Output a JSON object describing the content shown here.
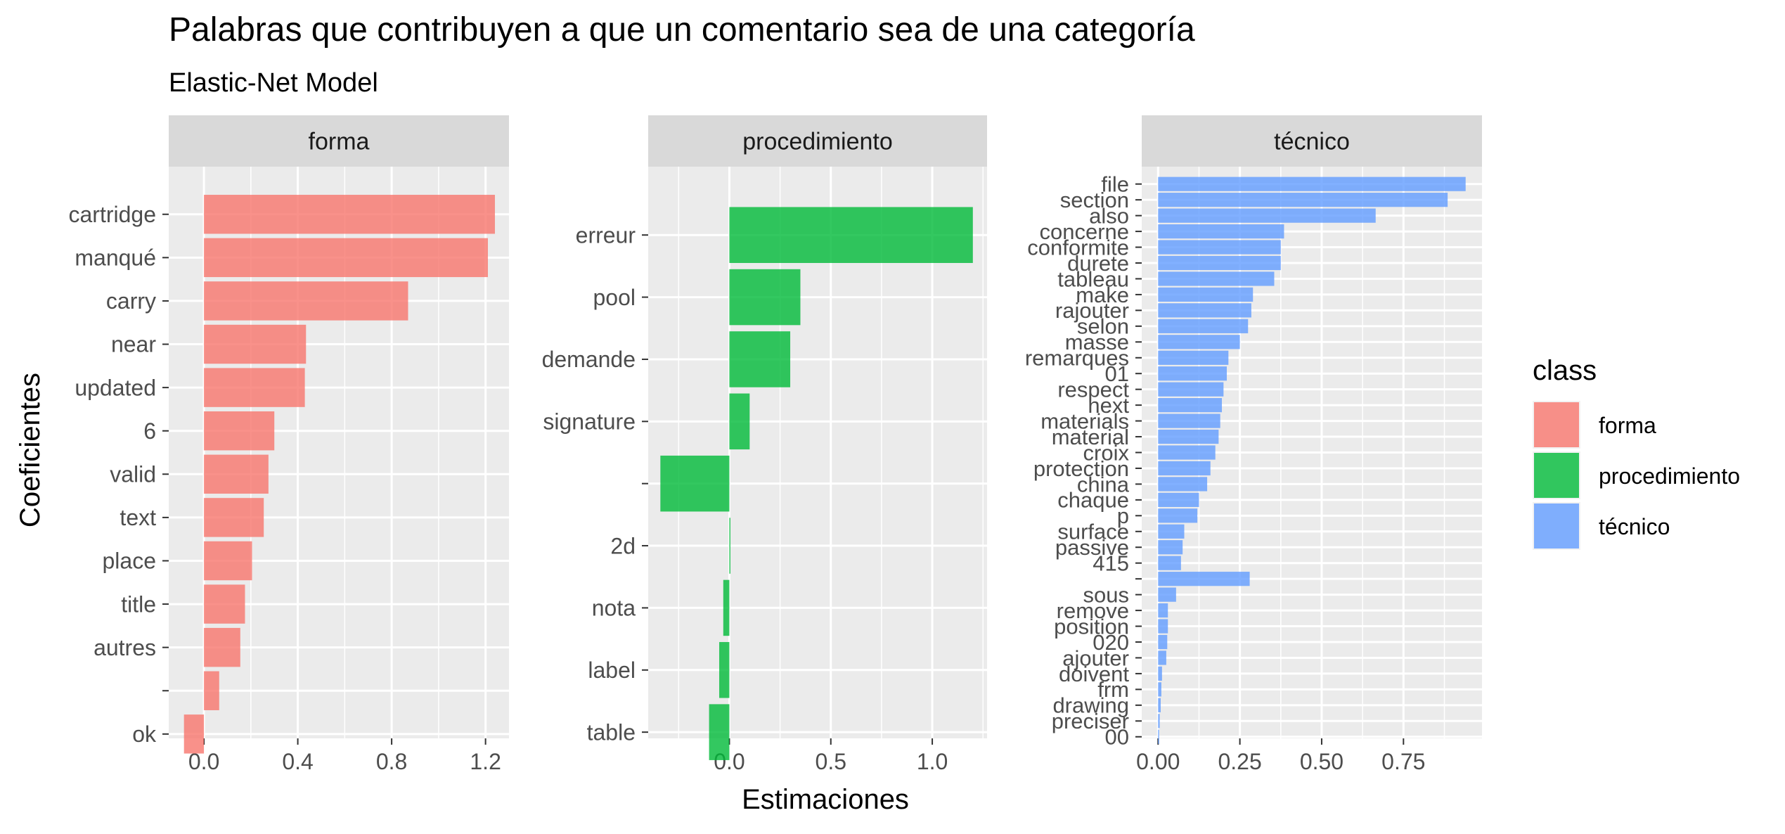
{
  "title": "Palabras que contribuyen a que un comentario sea de una categoría",
  "subtitle": "Elastic-Net Model",
  "y_axis_title": "Coeficientes",
  "x_axis_title": "Estimaciones",
  "legend": {
    "title": "class",
    "items": [
      {
        "label": "forma",
        "color": "#F8766D"
      },
      {
        "label": "procedimiento",
        "color": "#00BA38"
      },
      {
        "label": "técnico",
        "color": "#619CFF"
      }
    ]
  },
  "chart_data": {
    "type": "bar",
    "orientation": "horizontal",
    "facets": [
      {
        "name": "forma",
        "color": "#F8766D",
        "categories": [
          "cartridge",
          "manqué",
          "carry",
          "near",
          "updated",
          "6",
          "valid",
          "text",
          "place",
          "title",
          "autres",
          "",
          "ok"
        ],
        "values": [
          1.24,
          1.21,
          0.87,
          0.435,
          0.43,
          0.3,
          0.275,
          0.255,
          0.205,
          0.175,
          0.155,
          0.065,
          -0.085
        ],
        "xlim": [
          -0.15,
          1.3
        ],
        "xticks": [
          0.0,
          0.4,
          0.8,
          1.2
        ],
        "xtick_labels": [
          "0.0",
          "0.4",
          "0.8",
          "1.2"
        ]
      },
      {
        "name": "procedimiento",
        "color": "#00BA38",
        "categories": [
          "erreur",
          "pool",
          "demande",
          "signature",
          "",
          "2d",
          "nota",
          "label",
          "table"
        ],
        "values": [
          1.2,
          0.35,
          0.3,
          0.1,
          -0.34,
          0.005,
          -0.03,
          -0.05,
          -0.1
        ],
        "xlim": [
          -0.4,
          1.27
        ],
        "xticks": [
          0.0,
          0.5,
          1.0
        ],
        "xtick_labels": [
          "0.0",
          "0.5",
          "1.0"
        ]
      },
      {
        "name": "técnico",
        "color": "#619CFF",
        "categories": [
          "file",
          "section",
          "also",
          "concerne",
          "conformite",
          "durete",
          "tableau",
          "make",
          "rajouter",
          "selon",
          "masse",
          "remarques",
          "01",
          "respect",
          "next",
          "materials",
          "material",
          "croix",
          "protection",
          "china",
          "chaque",
          "p",
          "surface",
          "passive",
          "415",
          "",
          "sous",
          "remove",
          "position",
          "020",
          "ajouter",
          "doivent",
          "frm",
          "drawing",
          "preciser",
          "00"
        ],
        "values": [
          0.94,
          0.885,
          0.665,
          0.385,
          0.375,
          0.375,
          0.355,
          0.29,
          0.285,
          0.275,
          0.25,
          0.215,
          0.21,
          0.2,
          0.195,
          0.19,
          0.185,
          0.175,
          0.16,
          0.15,
          0.125,
          0.12,
          0.08,
          0.075,
          0.07,
          0.28,
          0.055,
          0.03,
          0.03,
          0.028,
          0.025,
          0.012,
          0.01,
          0.008,
          0.005,
          0.0
        ],
        "xlim": [
          -0.05,
          0.99
        ],
        "xticks": [
          0.0,
          0.25,
          0.5,
          0.75
        ],
        "xtick_labels": [
          "0.00",
          "0.25",
          "0.50",
          "0.75"
        ]
      }
    ],
    "grid": true,
    "legend_position": "right"
  }
}
